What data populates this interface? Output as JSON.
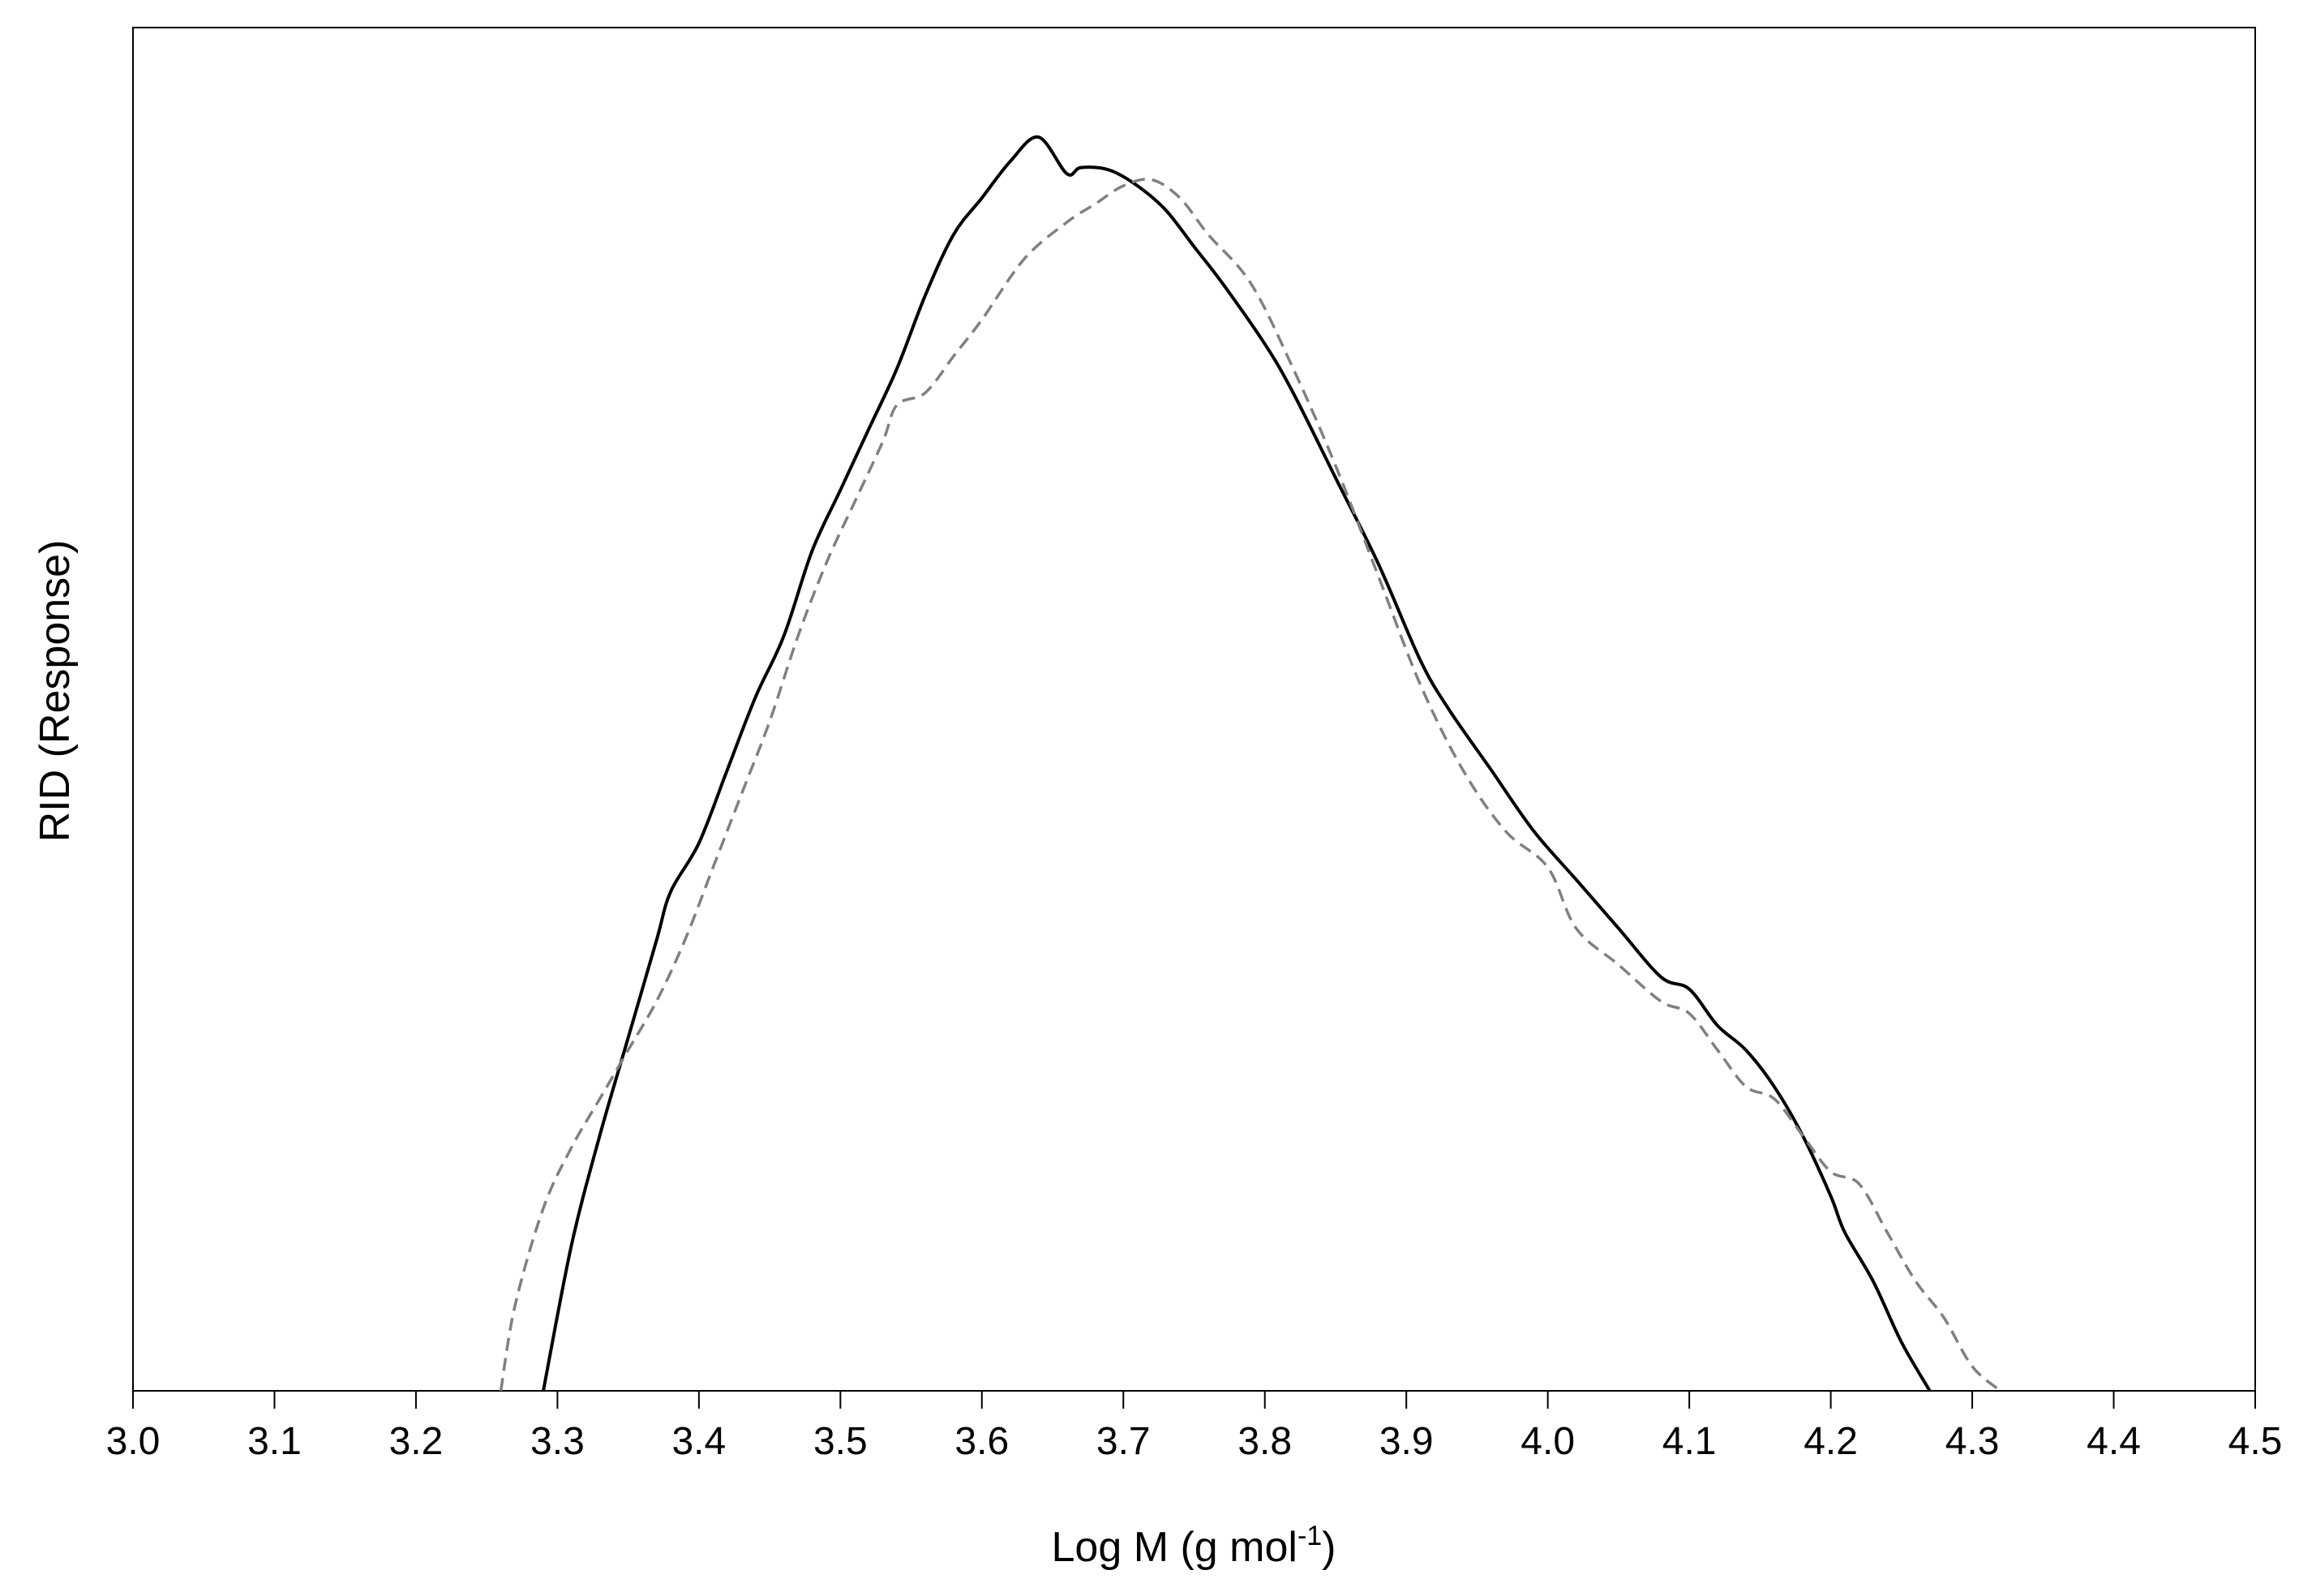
{
  "chart_data": {
    "type": "line",
    "xlabel": "Log M (g mol",
    "xlabel_sup": "-1",
    "xlabel_end": ")",
    "ylabel": "RID (Response)",
    "xlim": [
      3.0,
      4.5
    ],
    "ylim": [
      0,
      1.12
    ],
    "x_ticks": [
      "3.0",
      "3.1",
      "3.2",
      "3.3",
      "3.4",
      "3.5",
      "3.6",
      "3.7",
      "3.8",
      "3.9",
      "4.0",
      "4.1",
      "4.2",
      "4.3",
      "4.4",
      "4.5"
    ],
    "y_ticks_shown": false,
    "grid": false,
    "legend": "none",
    "series": [
      {
        "style": "solid",
        "color": "#000000",
        "x": [
          3.29,
          3.31,
          3.33,
          3.35,
          3.37,
          3.38,
          3.4,
          3.42,
          3.44,
          3.46,
          3.48,
          3.5,
          3.52,
          3.54,
          3.56,
          3.58,
          3.6,
          3.62,
          3.64,
          3.66,
          3.67,
          3.69,
          3.71,
          3.73,
          3.75,
          3.77,
          3.8,
          3.82,
          3.85,
          3.88,
          3.91,
          3.93,
          3.96,
          3.99,
          4.02,
          4.05,
          4.08,
          4.1,
          4.12,
          4.14,
          4.16,
          4.18,
          4.2,
          4.21,
          4.23,
          4.25,
          4.27
        ],
        "y": [
          0.0,
          0.12,
          0.21,
          0.29,
          0.37,
          0.41,
          0.45,
          0.51,
          0.57,
          0.62,
          0.69,
          0.74,
          0.79,
          0.84,
          0.9,
          0.95,
          0.98,
          1.01,
          1.03,
          1.0,
          1.005,
          1.003,
          0.99,
          0.97,
          0.94,
          0.91,
          0.86,
          0.82,
          0.75,
          0.68,
          0.6,
          0.56,
          0.51,
          0.46,
          0.42,
          0.38,
          0.34,
          0.33,
          0.3,
          0.28,
          0.25,
          0.21,
          0.16,
          0.13,
          0.09,
          0.04,
          0.0
        ]
      },
      {
        "style": "dashed",
        "color": "#808080",
        "x": [
          3.26,
          3.27,
          3.29,
          3.31,
          3.33,
          3.35,
          3.37,
          3.39,
          3.41,
          3.43,
          3.45,
          3.47,
          3.49,
          3.51,
          3.53,
          3.54,
          3.56,
          3.58,
          3.6,
          3.63,
          3.66,
          3.68,
          3.7,
          3.72,
          3.74,
          3.76,
          3.79,
          3.82,
          3.85,
          3.88,
          3.91,
          3.94,
          3.97,
          4.0,
          4.02,
          4.05,
          4.08,
          4.1,
          4.12,
          4.14,
          4.16,
          4.18,
          4.2,
          4.22,
          4.24,
          4.26,
          4.28,
          4.3,
          4.32
        ],
        "y": [
          0.0,
          0.07,
          0.15,
          0.2,
          0.24,
          0.28,
          0.32,
          0.37,
          0.43,
          0.49,
          0.55,
          0.62,
          0.68,
          0.73,
          0.78,
          0.81,
          0.82,
          0.85,
          0.88,
          0.93,
          0.96,
          0.975,
          0.99,
          0.995,
          0.98,
          0.95,
          0.91,
          0.84,
          0.76,
          0.67,
          0.58,
          0.51,
          0.46,
          0.43,
          0.38,
          0.35,
          0.32,
          0.31,
          0.28,
          0.25,
          0.24,
          0.21,
          0.18,
          0.17,
          0.13,
          0.09,
          0.06,
          0.02,
          0.0
        ]
      }
    ]
  }
}
